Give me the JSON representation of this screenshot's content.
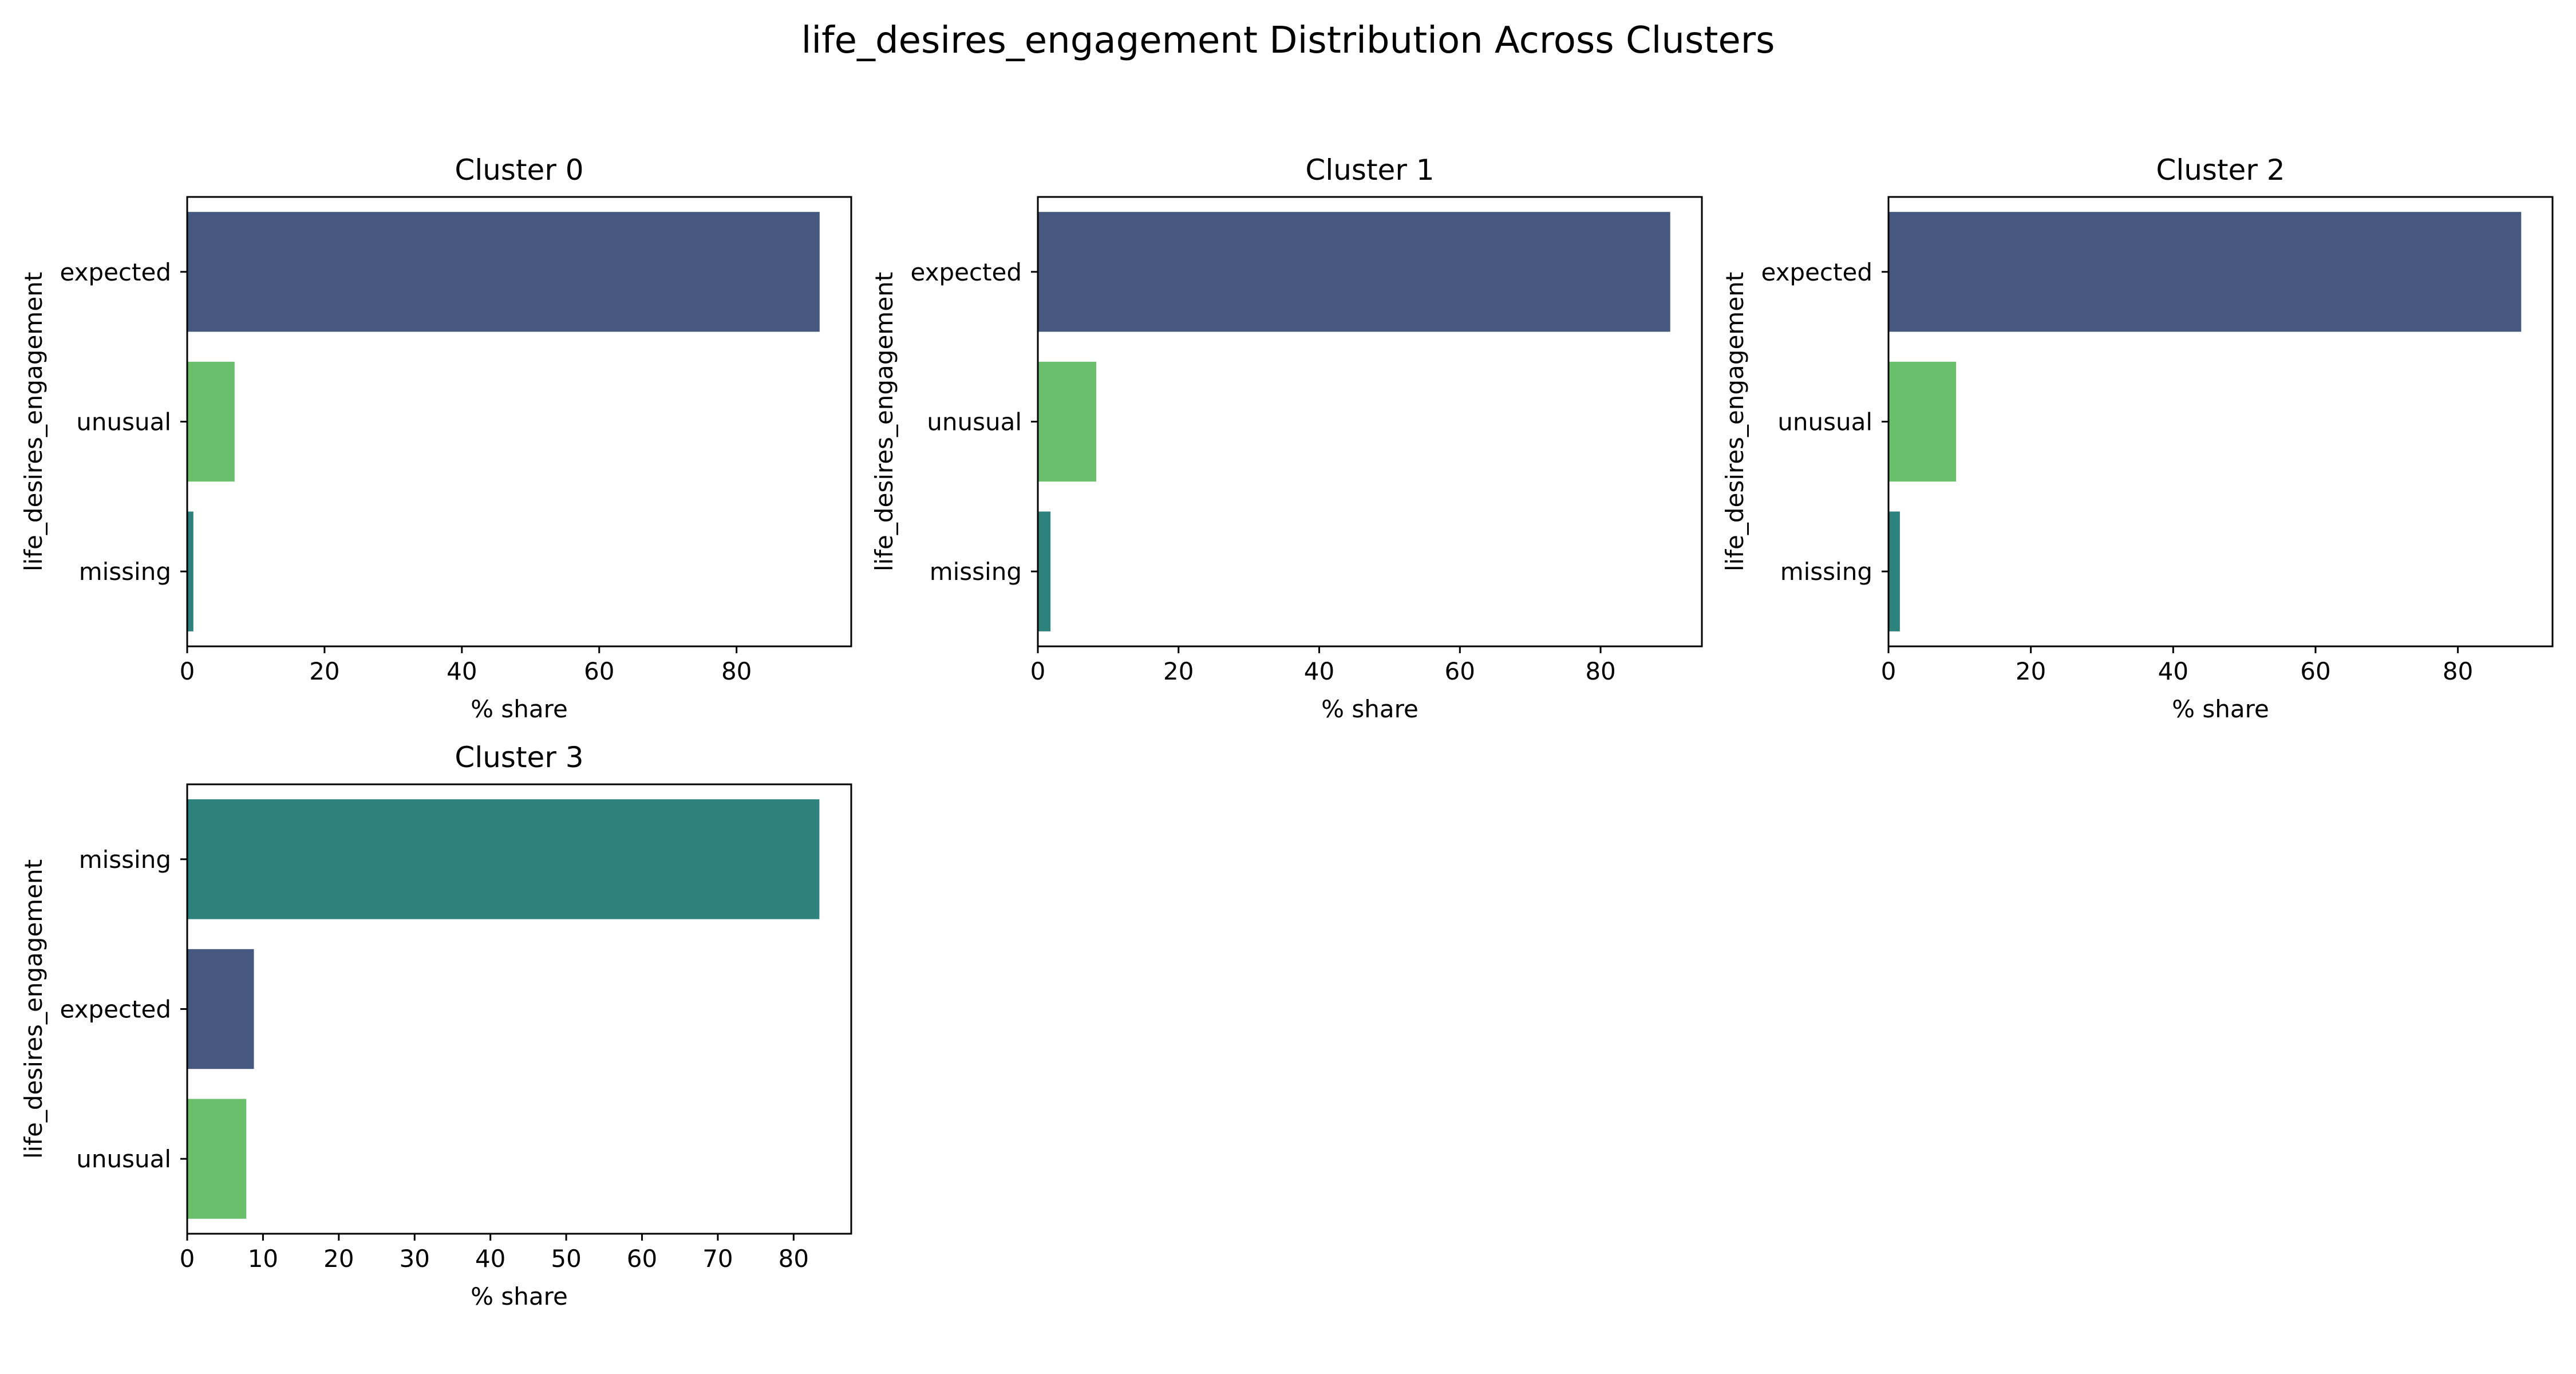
{
  "figure": {
    "title": "life_desires_engagement Distribution Across Clusters"
  },
  "colors": {
    "expected": "#46587f",
    "unusual": "#6abf6c",
    "missing": "#2e827d",
    "axis": "#000000",
    "background": "#ffffff"
  },
  "chart_data": [
    {
      "type": "bar",
      "orientation": "horizontal",
      "title": "Cluster 0",
      "xlabel": "% share",
      "ylabel": "life_desires_engagement",
      "categories": [
        "expected",
        "unusual",
        "missing"
      ],
      "values": [
        92.1,
        6.9,
        0.9
      ],
      "xlim": [
        0,
        96.7
      ],
      "xticks": [
        0,
        20,
        40,
        60,
        80
      ],
      "grid": false
    },
    {
      "type": "bar",
      "orientation": "horizontal",
      "title": "Cluster 1",
      "xlabel": "% share",
      "ylabel": "life_desires_engagement",
      "categories": [
        "expected",
        "unusual",
        "missing"
      ],
      "values": [
        89.9,
        8.3,
        1.8
      ],
      "xlim": [
        0,
        94.4
      ],
      "xticks": [
        0,
        20,
        40,
        60,
        80
      ],
      "grid": false
    },
    {
      "type": "bar",
      "orientation": "horizontal",
      "title": "Cluster 2",
      "xlabel": "% share",
      "ylabel": "life_desires_engagement",
      "categories": [
        "expected",
        "unusual",
        "missing"
      ],
      "values": [
        88.9,
        9.5,
        1.6
      ],
      "xlim": [
        0,
        93.3
      ],
      "xticks": [
        0,
        20,
        40,
        60,
        80
      ],
      "grid": false
    },
    {
      "type": "bar",
      "orientation": "horizontal",
      "title": "Cluster 3",
      "xlabel": "% share",
      "ylabel": "life_desires_engagement",
      "categories": [
        "missing",
        "expected",
        "unusual"
      ],
      "values": [
        83.4,
        8.8,
        7.8
      ],
      "xlim": [
        0,
        87.6
      ],
      "xticks": [
        0,
        10,
        20,
        30,
        40,
        50,
        60,
        70,
        80
      ],
      "grid": false
    }
  ]
}
